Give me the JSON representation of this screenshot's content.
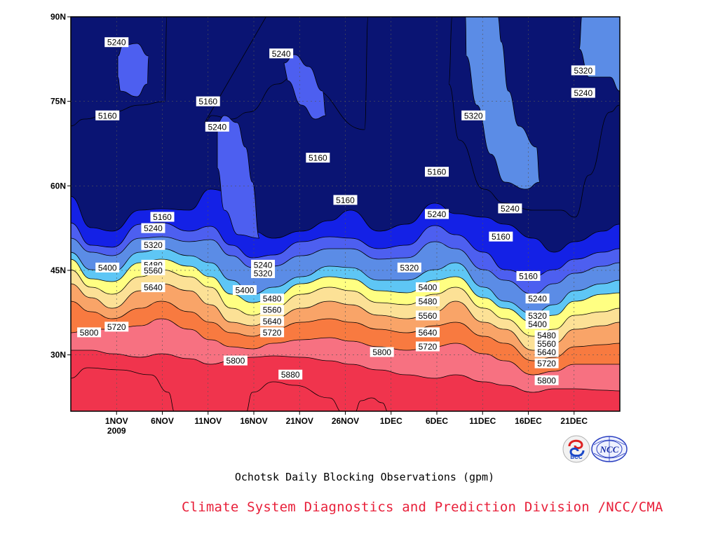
{
  "chart_data": {
    "type": "heatmap",
    "title": "Ochotsk Daily Blocking Observations (gpm)",
    "x_tick_labels": [
      "1NOV",
      "6NOV",
      "11NOV",
      "16NOV",
      "21NOV",
      "26NOV",
      "1DEC",
      "6DEC",
      "11DEC",
      "16DEC",
      "21DEC"
    ],
    "x_year_label": "2009",
    "x_range": [
      "2009-10-27",
      "2009-12-26"
    ],
    "y_tick_labels": [
      "30N",
      "45N",
      "60N",
      "75N",
      "90N"
    ],
    "y_range": [
      20,
      90
    ],
    "grid": true,
    "contour_levels": [
      5160,
      5240,
      5320,
      5400,
      5480,
      5560,
      5640,
      5720,
      5800,
      5880
    ],
    "level_colors": {
      "below_5160": "#0a1473",
      "5160": "#1421e6",
      "5240": "#4d5ff0",
      "5320": "#5b8ce6",
      "5400": "#5ec6f5",
      "5480": "#ffff82",
      "5560": "#fce196",
      "5640": "#f9a468",
      "5720": "#f87a40",
      "5800": "#f77181",
      "5880": "#f0344d"
    },
    "contour_labels": [
      {
        "text": "5240",
        "date": "2009-11-01",
        "lat": 85.5
      },
      {
        "text": "5240",
        "date": "2009-11-19",
        "lat": 83.5
      },
      {
        "text": "5320",
        "date": "2009-12-22",
        "lat": 80.5
      },
      {
        "text": "5240",
        "date": "2009-12-22",
        "lat": 76.5
      },
      {
        "text": "5160",
        "date": "2009-10-31",
        "lat": 72.5
      },
      {
        "text": "5160",
        "date": "2009-11-11",
        "lat": 75.0
      },
      {
        "text": "5240",
        "date": "2009-11-12",
        "lat": 70.5
      },
      {
        "text": "5320",
        "date": "2009-12-10",
        "lat": 72.5
      },
      {
        "text": "5160",
        "date": "2009-11-23",
        "lat": 65.0
      },
      {
        "text": "5160",
        "date": "2009-12-06",
        "lat": 62.5
      },
      {
        "text": "5160",
        "date": "2009-11-26",
        "lat": 57.5
      },
      {
        "text": "5240",
        "date": "2009-12-14",
        "lat": 56.0
      },
      {
        "text": "5240",
        "date": "2009-12-06",
        "lat": 55.0
      },
      {
        "text": "5160",
        "date": "2009-11-06",
        "lat": 54.5
      },
      {
        "text": "5240",
        "date": "2009-11-05",
        "lat": 52.5
      },
      {
        "text": "5160",
        "date": "2009-12-13",
        "lat": 51.0
      },
      {
        "text": "5320",
        "date": "2009-11-05",
        "lat": 49.5
      },
      {
        "text": "5240",
        "date": "2009-11-17",
        "lat": 46.0
      },
      {
        "text": "5480",
        "date": "2009-11-05",
        "lat": 46.0
      },
      {
        "text": "5400",
        "date": "2009-10-31",
        "lat": 45.5
      },
      {
        "text": "5320",
        "date": "2009-12-03",
        "lat": 45.5
      },
      {
        "text": "5560",
        "date": "2009-11-05",
        "lat": 45.0
      },
      {
        "text": "5320",
        "date": "2009-11-17",
        "lat": 44.5
      },
      {
        "text": "5160",
        "date": "2009-12-16",
        "lat": 44.0
      },
      {
        "text": "5400",
        "date": "2009-11-15",
        "lat": 41.5
      },
      {
        "text": "5400",
        "date": "2009-12-05",
        "lat": 42.0
      },
      {
        "text": "5640",
        "date": "2009-11-05",
        "lat": 42.0
      },
      {
        "text": "5240",
        "date": "2009-12-17",
        "lat": 40.0
      },
      {
        "text": "5480",
        "date": "2009-11-18",
        "lat": 40.0
      },
      {
        "text": "5480",
        "date": "2009-12-05",
        "lat": 39.5
      },
      {
        "text": "5560",
        "date": "2009-11-18",
        "lat": 38.0
      },
      {
        "text": "5320",
        "date": "2009-12-17",
        "lat": 37.0
      },
      {
        "text": "5560",
        "date": "2009-12-05",
        "lat": 37.0
      },
      {
        "text": "5640",
        "date": "2009-11-18",
        "lat": 36.0
      },
      {
        "text": "5400",
        "date": "2009-12-17",
        "lat": 35.5
      },
      {
        "text": "5720",
        "date": "2009-11-01",
        "lat": 35.0
      },
      {
        "text": "5480",
        "date": "2009-12-18",
        "lat": 33.5
      },
      {
        "text": "5640",
        "date": "2009-12-05",
        "lat": 34.0
      },
      {
        "text": "5800",
        "date": "2009-10-29",
        "lat": 34.0
      },
      {
        "text": "5720",
        "date": "2009-11-18",
        "lat": 34.0
      },
      {
        "text": "5560",
        "date": "2009-12-18",
        "lat": 32.0
      },
      {
        "text": "5720",
        "date": "2009-12-05",
        "lat": 31.5
      },
      {
        "text": "5640",
        "date": "2009-12-18",
        "lat": 30.5
      },
      {
        "text": "5800",
        "date": "2009-11-30",
        "lat": 30.5
      },
      {
        "text": "5800",
        "date": "2009-11-14",
        "lat": 29.0
      },
      {
        "text": "5720",
        "date": "2009-12-18",
        "lat": 28.5
      },
      {
        "text": "5880",
        "date": "2009-11-20",
        "lat": 26.5
      },
      {
        "text": "5800",
        "date": "2009-12-18",
        "lat": 25.5
      }
    ]
  },
  "logos": [
    "bcc-logo",
    "ncc-logo"
  ],
  "credit": "Climate System Diagnostics and Prediction Division /NCC/CMA"
}
